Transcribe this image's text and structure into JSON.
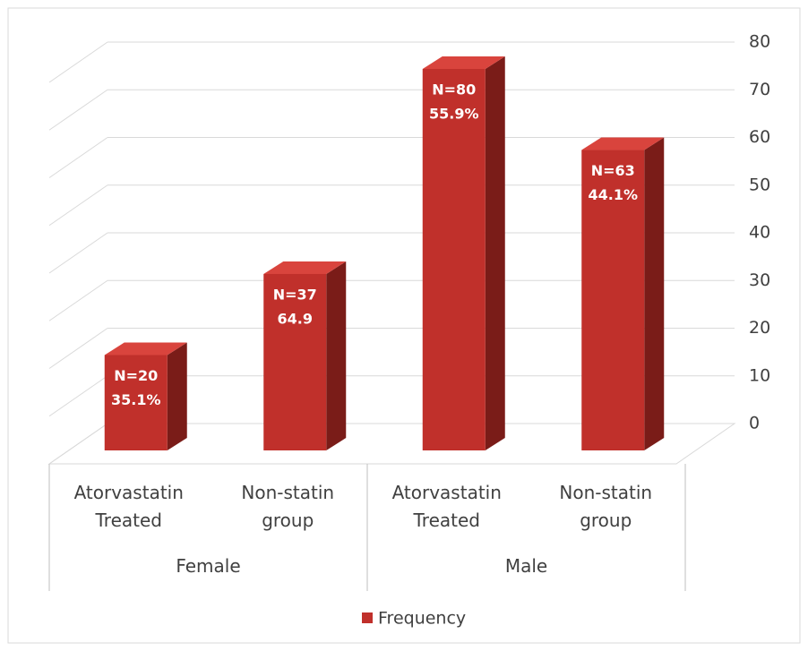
{
  "chart_data": {
    "type": "bar3d",
    "categories": [
      "Atorvastatin Treated",
      "Non-statin group",
      "Atorvastatin Treated",
      "Non-statin group"
    ],
    "groups": [
      {
        "name": "Female",
        "span": 2
      },
      {
        "name": "Male",
        "span": 2
      }
    ],
    "series": [
      {
        "name": "Frequency",
        "color": "#c0302b",
        "values": [
          20,
          37,
          80,
          63
        ],
        "value_labels": [
          "N=20",
          "N=37",
          "N=80",
          "N=63"
        ],
        "percent_labels": [
          "35.1%",
          "64.9",
          "55.9%",
          "44.1%"
        ]
      }
    ],
    "ylim": [
      0,
      80
    ],
    "yticks": [
      0,
      10,
      20,
      30,
      40,
      50,
      60,
      70,
      80
    ],
    "grid": true,
    "legend": "bottom"
  }
}
